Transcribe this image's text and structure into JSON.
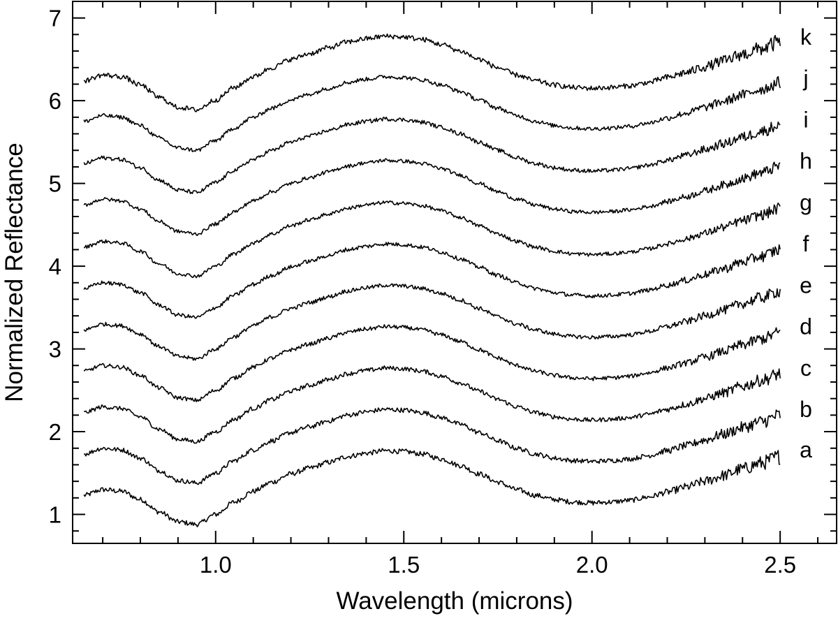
{
  "chart_data": {
    "type": "line",
    "xlabel": "Wavelength (microns)",
    "ylabel": "Normalized Reflectance",
    "xlim": [
      0.62,
      2.65
    ],
    "ylim": [
      0.65,
      7.2
    ],
    "x_ticks": [
      1.0,
      1.5,
      2.0,
      2.5
    ],
    "x_tick_labels": [
      "1.0",
      "1.5",
      "2.0",
      "2.5"
    ],
    "x_minor_step": 0.1,
    "y_ticks": [
      1,
      2,
      3,
      4,
      5,
      6,
      7
    ],
    "y_tick_labels": [
      "1",
      "2",
      "3",
      "4",
      "5",
      "6",
      "7"
    ],
    "y_minor_step": 0.2,
    "grid": false,
    "legend": "labels at right end of each curve",
    "series_template": {
      "x": [
        0.65,
        0.7,
        0.75,
        0.8,
        0.85,
        0.9,
        0.95,
        1.0,
        1.05,
        1.1,
        1.15,
        1.2,
        1.25,
        1.3,
        1.35,
        1.4,
        1.45,
        1.5,
        1.55,
        1.6,
        1.65,
        1.7,
        1.75,
        1.8,
        1.85,
        1.9,
        1.95,
        2.0,
        2.05,
        2.1,
        2.15,
        2.2,
        2.25,
        2.3,
        2.35,
        2.4,
        2.45,
        2.5
      ],
      "shape": [
        0.35,
        0.42,
        0.4,
        0.3,
        0.15,
        0.03,
        0.0,
        0.12,
        0.27,
        0.4,
        0.51,
        0.61,
        0.68,
        0.75,
        0.82,
        0.86,
        0.89,
        0.88,
        0.85,
        0.79,
        0.71,
        0.61,
        0.51,
        0.42,
        0.35,
        0.3,
        0.27,
        0.26,
        0.27,
        0.29,
        0.33,
        0.39,
        0.45,
        0.52,
        0.59,
        0.67,
        0.74,
        0.82
      ]
    },
    "series": [
      {
        "name": "a",
        "offset": 0.88,
        "noise": 0.03,
        "label_y": 1.78
      },
      {
        "name": "b",
        "offset": 1.38,
        "noise": 0.028,
        "label_y": 2.27
      },
      {
        "name": "c",
        "offset": 1.88,
        "noise": 0.026,
        "label_y": 2.77
      },
      {
        "name": "d",
        "offset": 2.38,
        "noise": 0.024,
        "label_y": 3.27
      },
      {
        "name": "e",
        "offset": 2.88,
        "noise": 0.024,
        "label_y": 3.77
      },
      {
        "name": "f",
        "offset": 3.38,
        "noise": 0.024,
        "label_y": 4.27
      },
      {
        "name": "g",
        "offset": 3.88,
        "noise": 0.022,
        "label_y": 4.77
      },
      {
        "name": "h",
        "offset": 4.39,
        "noise": 0.022,
        "label_y": 5.27
      },
      {
        "name": "i",
        "offset": 4.89,
        "noise": 0.024,
        "label_y": 5.77
      },
      {
        "name": "j",
        "offset": 5.4,
        "noise": 0.024,
        "label_y": 6.27
      },
      {
        "name": "k",
        "offset": 5.89,
        "noise": 0.03,
        "label_y": 6.77
      }
    ]
  }
}
